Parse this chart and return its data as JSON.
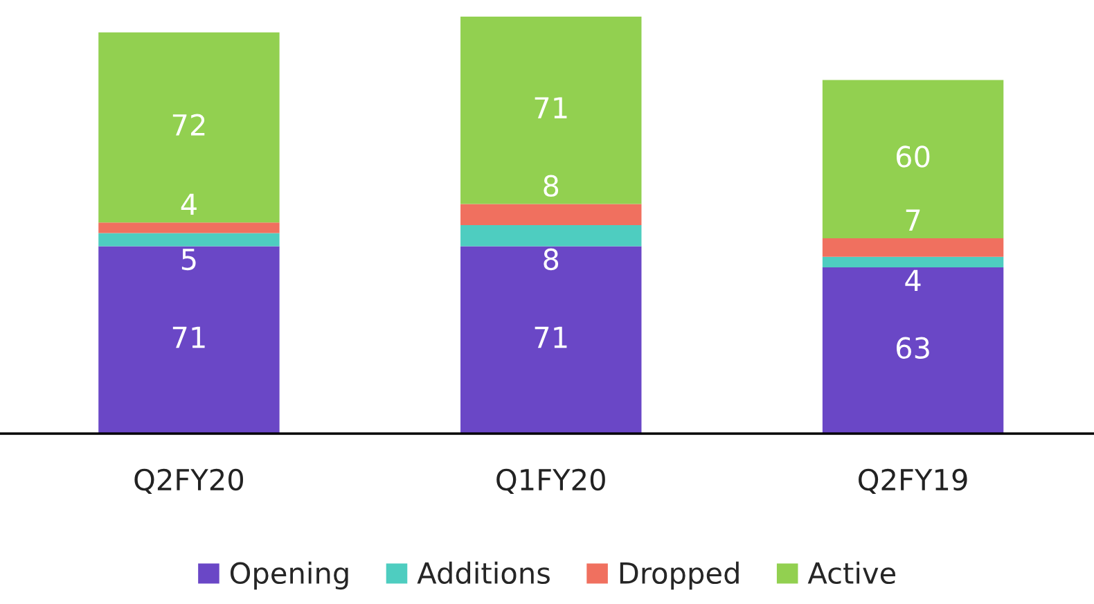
{
  "chart_data": {
    "type": "bar",
    "stacked": true,
    "categories": [
      "Q2FY20",
      "Q1FY20",
      "Q2FY19"
    ],
    "series": [
      {
        "name": "Opening",
        "color": "#6a47c6",
        "values": [
          71,
          71,
          63
        ]
      },
      {
        "name": "Additions",
        "color": "#4ecdc0",
        "values": [
          5,
          8,
          4
        ]
      },
      {
        "name": "Dropped",
        "color": "#f0705f",
        "values": [
          4,
          8,
          7
        ]
      },
      {
        "name": "Active",
        "color": "#92d050",
        "values": [
          72,
          71,
          60
        ]
      }
    ],
    "data_labels": true,
    "tick_labels": "x",
    "legend": "bottom"
  }
}
